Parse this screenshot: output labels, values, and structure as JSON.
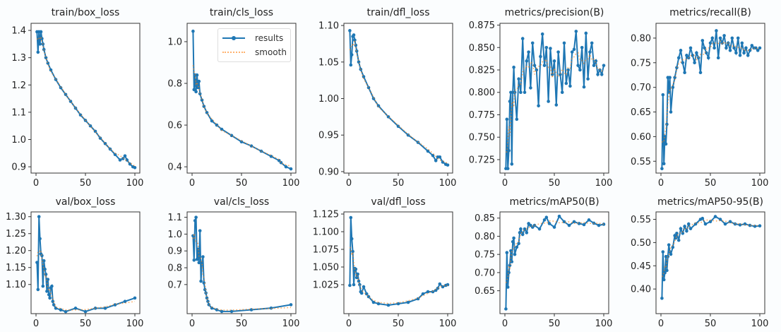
{
  "legend": {
    "results": "results",
    "smooth": "smooth"
  },
  "colors": {
    "results": "#1f77b4",
    "smooth": "#ff7f0e"
  },
  "chart_data": [
    {
      "type": "line",
      "title": "train/box_loss",
      "xlim": [
        -5,
        105
      ],
      "ylim": [
        0.877,
        1.426
      ],
      "xticks": [
        0,
        50,
        100
      ],
      "yticks": [
        0.9,
        1.0,
        1.1,
        1.2,
        1.3,
        1.4
      ],
      "ytick_labels": [
        "0.9",
        "1.0",
        "1.1",
        "1.2",
        "1.3",
        "1.4"
      ],
      "x": [
        1,
        2,
        3,
        4,
        5,
        6,
        7,
        8,
        10,
        12,
        15,
        20,
        25,
        30,
        35,
        40,
        45,
        50,
        55,
        60,
        65,
        70,
        75,
        80,
        85,
        88,
        90,
        92,
        95,
        98,
        100
      ],
      "y": [
        1.395,
        1.32,
        1.395,
        1.35,
        1.395,
        1.37,
        1.35,
        1.33,
        1.3,
        1.28,
        1.255,
        1.22,
        1.19,
        1.165,
        1.14,
        1.115,
        1.09,
        1.07,
        1.05,
        1.03,
        1.005,
        0.985,
        0.965,
        0.945,
        0.925,
        0.93,
        0.94,
        0.925,
        0.91,
        0.9,
        0.897
      ]
    },
    {
      "type": "line",
      "title": "train/cls_loss",
      "xlim": [
        -5,
        105
      ],
      "ylim": [
        0.37,
        1.088
      ],
      "xticks": [
        0,
        50,
        100
      ],
      "yticks": [
        0.4,
        0.6,
        0.8,
        1.0
      ],
      "ytick_labels": [
        "0.4",
        "0.6",
        "0.8",
        "1.0"
      ],
      "legend": "top-right",
      "x": [
        1,
        2,
        3,
        4,
        5,
        6,
        7,
        8,
        10,
        12,
        15,
        20,
        25,
        30,
        40,
        50,
        60,
        70,
        80,
        88,
        90,
        95,
        100
      ],
      "y": [
        1.05,
        0.77,
        0.84,
        0.76,
        0.84,
        0.78,
        0.81,
        0.75,
        0.72,
        0.69,
        0.66,
        0.62,
        0.6,
        0.58,
        0.55,
        0.52,
        0.5,
        0.475,
        0.45,
        0.43,
        0.42,
        0.4,
        0.39
      ]
    },
    {
      "type": "line",
      "title": "train/dfl_loss",
      "xlim": [
        -5,
        105
      ],
      "ylim": [
        0.898,
        1.103
      ],
      "xticks": [
        0,
        50,
        100
      ],
      "yticks": [
        0.9,
        0.95,
        1.0,
        1.05,
        1.1
      ],
      "ytick_labels": [
        "0.90",
        "0.95",
        "1.00",
        "1.05",
        "1.10"
      ],
      "x": [
        1,
        2,
        3,
        4,
        5,
        6,
        7,
        8,
        10,
        12,
        15,
        20,
        25,
        30,
        40,
        50,
        60,
        70,
        80,
        85,
        88,
        90,
        92,
        95,
        98,
        100
      ],
      "y": [
        1.093,
        1.046,
        1.06,
        1.085,
        1.087,
        1.08,
        1.073,
        1.065,
        1.05,
        1.04,
        1.03,
        1.015,
        1.0,
        0.99,
        0.975,
        0.962,
        0.95,
        0.94,
        0.928,
        0.922,
        0.915,
        0.92,
        0.92,
        0.913,
        0.91,
        0.909
      ]
    },
    {
      "type": "line",
      "title": "metrics/precision(B)",
      "xlim": [
        -5,
        105
      ],
      "ylim": [
        0.71,
        0.877
      ],
      "xticks": [
        0,
        50,
        100
      ],
      "yticks": [
        0.725,
        0.75,
        0.775,
        0.8,
        0.825,
        0.85,
        0.875
      ],
      "ytick_labels": [
        "0.725",
        "0.750",
        "0.775",
        "0.800",
        "0.825",
        "0.850",
        "0.875"
      ],
      "x": [
        1,
        2,
        3,
        4,
        5,
        6,
        7,
        8,
        9,
        10,
        12,
        14,
        16,
        18,
        20,
        22,
        24,
        26,
        28,
        30,
        32,
        34,
        36,
        38,
        40,
        42,
        44,
        46,
        48,
        50,
        52,
        54,
        56,
        58,
        60,
        62,
        64,
        66,
        68,
        70,
        72,
        74,
        76,
        78,
        80,
        82,
        84,
        86,
        88,
        90,
        92,
        94,
        96,
        98,
        100
      ],
      "y": [
        0.715,
        0.77,
        0.715,
        0.735,
        0.79,
        0.8,
        0.72,
        0.8,
        0.828,
        0.8,
        0.77,
        0.815,
        0.8,
        0.86,
        0.8,
        0.835,
        0.845,
        0.805,
        0.855,
        0.83,
        0.825,
        0.785,
        0.84,
        0.865,
        0.83,
        0.85,
        0.79,
        0.849,
        0.82,
        0.835,
        0.786,
        0.845,
        0.82,
        0.8,
        0.855,
        0.81,
        0.825,
        0.807,
        0.845,
        0.848,
        0.868,
        0.83,
        0.825,
        0.85,
        0.806,
        0.866,
        0.815,
        0.845,
        0.855,
        0.83,
        0.835,
        0.82,
        0.825,
        0.82,
        0.83
      ]
    },
    {
      "type": "line",
      "title": "metrics/recall(B)",
      "xlim": [
        -5,
        105
      ],
      "ylim": [
        0.526,
        0.83
      ],
      "xticks": [
        0,
        50,
        100
      ],
      "yticks": [
        0.55,
        0.6,
        0.65,
        0.7,
        0.75,
        0.8
      ],
      "ytick_labels": [
        "0.55",
        "0.60",
        "0.65",
        "0.70",
        "0.75",
        "0.80"
      ],
      "x": [
        1,
        2,
        3,
        4,
        5,
        6,
        7,
        8,
        9,
        10,
        12,
        14,
        16,
        18,
        20,
        22,
        24,
        26,
        28,
        30,
        32,
        34,
        36,
        38,
        40,
        42,
        44,
        46,
        48,
        50,
        52,
        54,
        56,
        58,
        60,
        62,
        64,
        66,
        68,
        70,
        72,
        74,
        76,
        78,
        80,
        82,
        84,
        86,
        88,
        90,
        92,
        94,
        96,
        98,
        100
      ],
      "y": [
        0.535,
        0.685,
        0.545,
        0.6,
        0.585,
        0.625,
        0.72,
        0.69,
        0.72,
        0.65,
        0.7,
        0.72,
        0.74,
        0.76,
        0.775,
        0.75,
        0.73,
        0.765,
        0.76,
        0.78,
        0.765,
        0.75,
        0.77,
        0.76,
        0.73,
        0.795,
        0.78,
        0.77,
        0.76,
        0.79,
        0.8,
        0.78,
        0.815,
        0.76,
        0.8,
        0.79,
        0.805,
        0.78,
        0.79,
        0.775,
        0.8,
        0.78,
        0.77,
        0.8,
        0.765,
        0.79,
        0.77,
        0.78,
        0.765,
        0.775,
        0.785,
        0.78,
        0.78,
        0.775,
        0.78
      ]
    },
    {
      "type": "line",
      "title": "val/box_loss",
      "xlim": [
        -5,
        105
      ],
      "ylim": [
        1.014,
        1.314
      ],
      "xticks": [
        0,
        50,
        100
      ],
      "yticks": [
        1.1,
        1.15,
        1.2,
        1.25,
        1.3
      ],
      "ytick_labels": [
        "1.10",
        "1.15",
        "1.20",
        "1.25",
        "1.30"
      ],
      "x": [
        1,
        2,
        3,
        4,
        5,
        6,
        7,
        8,
        9,
        10,
        11,
        12,
        13,
        14,
        15,
        16,
        17,
        18,
        20,
        25,
        30,
        40,
        50,
        60,
        70,
        80,
        90,
        100
      ],
      "y": [
        1.165,
        1.085,
        1.3,
        1.235,
        1.19,
        1.185,
        1.095,
        1.17,
        1.145,
        1.13,
        1.08,
        1.115,
        1.07,
        1.06,
        1.09,
        1.095,
        1.05,
        1.04,
        1.03,
        1.025,
        1.02,
        1.03,
        1.02,
        1.03,
        1.03,
        1.04,
        1.05,
        1.06
      ]
    },
    {
      "type": "line",
      "title": "val/cls_loss",
      "xlim": [
        -5,
        105
      ],
      "ylim": [
        0.527,
        1.132
      ],
      "xticks": [
        0,
        50,
        100
      ],
      "yticks": [
        0.7,
        0.8,
        0.9,
        1.0,
        1.1
      ],
      "ytick_labels": [
        "0.7",
        "0.8",
        "0.9",
        "1.0",
        "1.1"
      ],
      "x": [
        1,
        2,
        3,
        4,
        5,
        6,
        7,
        8,
        9,
        10,
        11,
        12,
        13,
        14,
        15,
        16,
        17,
        20,
        25,
        30,
        40,
        60,
        80,
        100
      ],
      "y": [
        0.99,
        0.845,
        1.08,
        1.1,
        0.85,
        0.91,
        0.83,
        1.02,
        0.72,
        0.83,
        0.865,
        0.71,
        0.67,
        0.65,
        0.62,
        0.6,
        0.58,
        0.56,
        0.55,
        0.54,
        0.54,
        0.55,
        0.56,
        0.58
      ]
    },
    {
      "type": "line",
      "title": "val/dfl_loss",
      "xlim": [
        -5,
        105
      ],
      "ylim": [
        0.984,
        1.128
      ],
      "xticks": [
        0,
        50,
        100
      ],
      "yticks": [
        1.025,
        1.05,
        1.075,
        1.1,
        1.125
      ],
      "ytick_labels": [
        "1.025",
        "1.050",
        "1.075",
        "1.100",
        "1.125"
      ],
      "x": [
        1,
        2,
        3,
        4,
        5,
        6,
        7,
        8,
        9,
        10,
        11,
        12,
        13,
        15,
        18,
        20,
        25,
        30,
        40,
        50,
        60,
        70,
        75,
        80,
        85,
        88,
        90,
        92,
        95,
        98,
        100
      ],
      "y": [
        1.024,
        1.12,
        1.09,
        1.072,
        1.025,
        1.048,
        1.047,
        1.035,
        1.04,
        1.03,
        1.025,
        1.015,
        1.013,
        1.022,
        1.012,
        1.008,
        1.0,
        0.998,
        0.996,
        0.998,
        1.0,
        1.005,
        1.012,
        1.015,
        1.015,
        1.017,
        1.02,
        1.026,
        1.022,
        1.024,
        1.025
      ]
    },
    {
      "type": "line",
      "title": "metrics/mAP50(B)",
      "xlim": [
        -5,
        105
      ],
      "ylim": [
        0.587,
        0.867
      ],
      "xticks": [
        0,
        50,
        100
      ],
      "yticks": [
        0.65,
        0.7,
        0.75,
        0.8,
        0.85
      ],
      "ytick_labels": [
        "0.65",
        "0.70",
        "0.75",
        "0.80",
        "0.85"
      ],
      "x": [
        1,
        2,
        3,
        4,
        5,
        6,
        7,
        8,
        9,
        10,
        12,
        14,
        15,
        16,
        18,
        20,
        22,
        24,
        26,
        28,
        30,
        35,
        40,
        42,
        45,
        50,
        55,
        60,
        65,
        70,
        75,
        80,
        85,
        90,
        95,
        100
      ],
      "y": [
        0.6,
        0.755,
        0.66,
        0.7,
        0.72,
        0.76,
        0.73,
        0.785,
        0.795,
        0.75,
        0.77,
        0.78,
        0.81,
        0.82,
        0.805,
        0.82,
        0.81,
        0.835,
        0.83,
        0.825,
        0.83,
        0.82,
        0.845,
        0.852,
        0.835,
        0.825,
        0.855,
        0.84,
        0.83,
        0.84,
        0.835,
        0.832,
        0.845,
        0.836,
        0.83,
        0.833
      ]
    },
    {
      "type": "line",
      "title": "metrics/mAP50-95(B)",
      "xlim": [
        -5,
        105
      ],
      "ylim": [
        0.347,
        0.566
      ],
      "xticks": [
        0,
        50,
        100
      ],
      "yticks": [
        0.4,
        0.45,
        0.5,
        0.55
      ],
      "ytick_labels": [
        "0.40",
        "0.45",
        "0.50",
        "0.55"
      ],
      "x": [
        1,
        2,
        3,
        4,
        5,
        6,
        7,
        8,
        9,
        10,
        12,
        14,
        15,
        16,
        18,
        20,
        22,
        24,
        26,
        28,
        30,
        35,
        40,
        42,
        45,
        50,
        55,
        60,
        65,
        70,
        75,
        80,
        85,
        90,
        95,
        100
      ],
      "y": [
        0.38,
        0.48,
        0.42,
        0.435,
        0.47,
        0.44,
        0.47,
        0.495,
        0.48,
        0.475,
        0.49,
        0.515,
        0.51,
        0.52,
        0.505,
        0.53,
        0.52,
        0.535,
        0.525,
        0.54,
        0.53,
        0.54,
        0.55,
        0.552,
        0.54,
        0.545,
        0.556,
        0.55,
        0.54,
        0.545,
        0.54,
        0.538,
        0.54,
        0.537,
        0.535,
        0.536
      ]
    }
  ]
}
